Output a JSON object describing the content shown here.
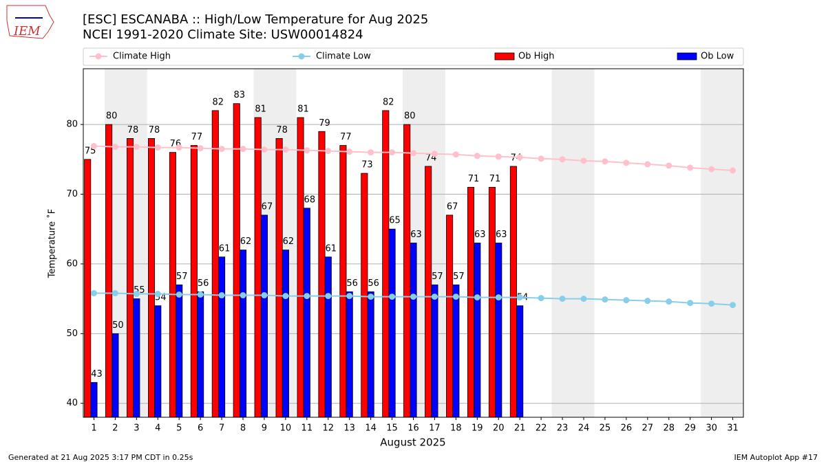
{
  "logo_text": "IEM",
  "chart_data": {
    "type": "bar",
    "title": "[ESC] ESCANABA :: High/Low Temperature for Aug 2025",
    "subtitle": "NCEI 1991-2020 Climate Site: USW00014824",
    "x_label": "August 2025",
    "y_label": "Temperature ˚F",
    "x": [
      1,
      2,
      3,
      4,
      5,
      6,
      7,
      8,
      9,
      10,
      11,
      12,
      13,
      14,
      15,
      16,
      17,
      18,
      19,
      20,
      21,
      22,
      23,
      24,
      25,
      26,
      27,
      28,
      29,
      30,
      31
    ],
    "xlim": [
      0.5,
      31.5
    ],
    "ylim": [
      38,
      88
    ],
    "yticks": [
      40,
      50,
      60,
      70,
      80
    ],
    "grid": true,
    "shaded_ranges": [
      [
        1.5,
        3.5
      ],
      [
        8.5,
        10.5
      ],
      [
        15.5,
        17.5
      ],
      [
        22.5,
        24.5
      ],
      [
        29.5,
        31.5
      ]
    ],
    "series": [
      {
        "name": "Climate High",
        "kind": "line",
        "color": "#ffc0cb",
        "values": [
          76.9,
          76.8,
          76.8,
          76.7,
          76.7,
          76.6,
          76.5,
          76.5,
          76.4,
          76.4,
          76.3,
          76.2,
          76.1,
          76.0,
          76.0,
          75.9,
          75.8,
          75.7,
          75.5,
          75.4,
          75.3,
          75.1,
          75.0,
          74.8,
          74.7,
          74.5,
          74.3,
          74.1,
          73.8,
          73.6,
          73.4
        ]
      },
      {
        "name": "Climate Low",
        "kind": "line",
        "color": "#87ceeb",
        "values": [
          55.8,
          55.8,
          55.7,
          55.7,
          55.6,
          55.6,
          55.5,
          55.5,
          55.5,
          55.4,
          55.4,
          55.4,
          55.4,
          55.3,
          55.3,
          55.3,
          55.3,
          55.3,
          55.2,
          55.2,
          55.2,
          55.1,
          55.0,
          55.0,
          54.9,
          54.8,
          54.7,
          54.6,
          54.4,
          54.3,
          54.1
        ]
      },
      {
        "name": "Ob High",
        "kind": "bar",
        "color": "#ff0000",
        "values": [
          75,
          80,
          78,
          78,
          76,
          77,
          82,
          83,
          81,
          78,
          81,
          79,
          77,
          73,
          82,
          80,
          74,
          67,
          71,
          71,
          74,
          null,
          null,
          null,
          null,
          null,
          null,
          null,
          null,
          null,
          null
        ]
      },
      {
        "name": "Ob Low",
        "kind": "bar",
        "color": "#0000ff",
        "values": [
          43,
          50,
          55,
          54,
          57,
          56,
          61,
          62,
          67,
          62,
          68,
          61,
          56,
          56,
          65,
          63,
          57,
          57,
          63,
          63,
          54,
          null,
          null,
          null,
          null,
          null,
          null,
          null,
          null,
          null,
          null
        ]
      }
    ],
    "footer_left": "Generated at 21 Aug 2025 3:17 PM CDT in 0.25s",
    "footer_right": "IEM Autoplot App #17"
  }
}
